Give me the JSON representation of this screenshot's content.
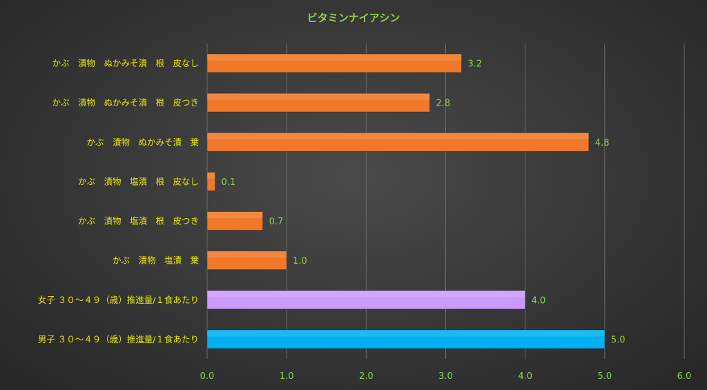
{
  "chart_data": {
    "type": "bar",
    "orientation": "horizontal",
    "title": "ビタミンナイアシン",
    "categories": [
      "かぶ　漬物　ぬかみそ漬　根　皮なし",
      "かぶ　漬物　ぬかみそ漬　根　皮つき",
      "かぶ　漬物　ぬかみそ漬　葉",
      "かぶ　漬物　塩漬　根　皮なし",
      "かぶ　漬物　塩漬　根　皮つき",
      "かぶ　漬物　塩漬　葉",
      "女子 ３０～４９（歳）推進量/１食あたり",
      "男子 ３０～４９（歳）推進量/１食あたり"
    ],
    "values": [
      3.2,
      2.8,
      4.8,
      0.1,
      0.7,
      1.0,
      4.0,
      5.0
    ],
    "value_labels": [
      "3.2",
      "2.8",
      "4.8",
      "0.1",
      "0.7",
      "1.0",
      "4.0",
      "5.0"
    ],
    "bar_colors": [
      "#f07828",
      "#f07828",
      "#f07828",
      "#f07828",
      "#f07828",
      "#f07828",
      "#cc99ff",
      "#00b0f0"
    ],
    "xlim": [
      0,
      6
    ],
    "xticks": [
      "0.0",
      "1.0",
      "2.0",
      "3.0",
      "4.0",
      "5.0",
      "6.0"
    ],
    "grid": true,
    "legend": "none"
  }
}
